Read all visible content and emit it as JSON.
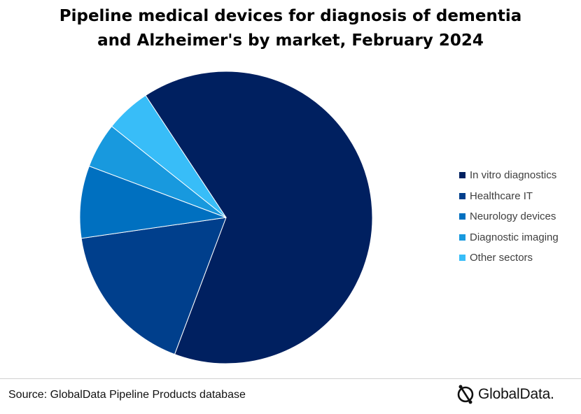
{
  "title": {
    "line1": "Pipeline medical devices for diagnosis of dementia",
    "line2": "and Alzheimer's by market, February 2024"
  },
  "chart_data": {
    "type": "pie",
    "title": "Pipeline medical devices for diagnosis of dementia and Alzheimer's by market, February 2024",
    "legend_position": "right",
    "slices": [
      {
        "label": "In vitro diagnostics",
        "value": 65,
        "color": "#002060"
      },
      {
        "label": "Healthcare IT",
        "value": 17,
        "color": "#003F8C"
      },
      {
        "label": "Neurology devices",
        "value": 8,
        "color": "#0070C0"
      },
      {
        "label": "Diagnostic imaging",
        "value": 5,
        "color": "#1899DE"
      },
      {
        "label": "Other sectors",
        "value": 5,
        "color": "#38BDF8"
      }
    ]
  },
  "footer": {
    "source": "Source: GlobalData Pipeline Products database",
    "logo_text": "GlobalData."
  }
}
